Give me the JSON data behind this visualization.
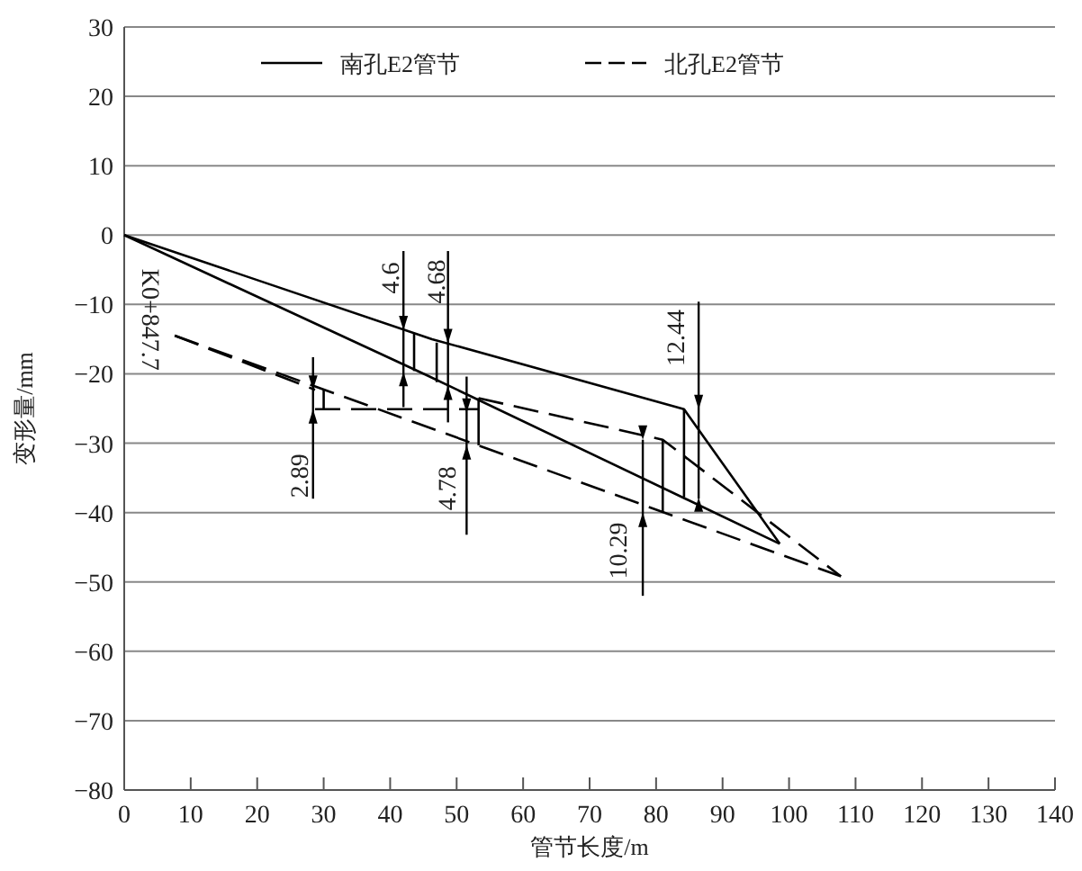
{
  "chart_data": {
    "type": "line",
    "xlabel": "管节长度/m",
    "ylabel": "变形量/mm",
    "xlim": [
      0,
      140
    ],
    "xticks": [
      0,
      10,
      20,
      30,
      40,
      50,
      60,
      70,
      80,
      90,
      100,
      110,
      120,
      130,
      140
    ],
    "ylim": [
      -80,
      30
    ],
    "yticks": [
      -80,
      -70,
      -60,
      -50,
      -40,
      -30,
      -20,
      -10,
      0,
      10,
      20,
      30
    ],
    "grid": "y",
    "legend": "top",
    "series": [
      {
        "name": "南孔E2管节",
        "color": "#000000",
        "line_style": "solid",
        "x": [
          0,
          46.3,
          84.2,
          98.6
        ],
        "values": [
          0,
          -15,
          -25.1,
          -44.5
        ]
      },
      {
        "color": "#000000",
        "line_style": "solid",
        "x": [
          0,
          45.5,
          98.6
        ],
        "values": [
          0,
          -20.2,
          -44.5
        ]
      },
      {
        "color": "#000000",
        "line_style": "solid",
        "x": [
          43.6,
          43.6
        ],
        "values": [
          -14.1,
          -19.6
        ]
      },
      {
        "color": "#000000",
        "line_style": "solid",
        "x": [
          47,
          47
        ],
        "values": [
          -15.5,
          -21.2
        ]
      },
      {
        "color": "#000000",
        "line_style": "solid",
        "x": [
          84.2,
          84.2
        ],
        "values": [
          -25.1,
          -37.8
        ]
      },
      {
        "name": "北孔E2管节",
        "color": "#000000",
        "line_style": "dashed",
        "x": [
          7.6,
          28.7
        ],
        "values": [
          -14.5,
          -22.3
        ]
      },
      {
        "color": "#000000",
        "line_style": "dashed",
        "x": [
          28.7,
          53.3
        ],
        "values": [
          -25.1,
          -25.1
        ]
      },
      {
        "color": "#000000",
        "line_style": "dashed",
        "x": [
          53.3,
          81,
          107.8
        ],
        "values": [
          -23.5,
          -29.5,
          -49.2
        ]
      },
      {
        "color": "#000000",
        "line_style": "dashed",
        "x": [
          7.6,
          107.8
        ],
        "values": [
          -14.5,
          -49.2
        ]
      },
      {
        "color": "#000000",
        "line_style": "solid",
        "x": [
          30,
          30
        ],
        "values": [
          -22.3,
          -25.1
        ]
      },
      {
        "color": "#000000",
        "line_style": "solid",
        "x": [
          53.3,
          53.3
        ],
        "values": [
          -23.5,
          -30.3
        ]
      },
      {
        "color": "#000000",
        "line_style": "solid",
        "x": [
          81,
          81
        ],
        "values": [
          -29.5,
          -40
        ]
      }
    ],
    "annotations": [
      {
        "text": "4.6",
        "x": 42,
        "y": -13.7
      },
      {
        "text": "4.68",
        "x": 48.7,
        "y": -15.6
      },
      {
        "text": "2.89",
        "x": 28.4,
        "y": -22.3
      },
      {
        "text": "4.78",
        "x": 51.5,
        "y": -25.6
      },
      {
        "text": "10.29",
        "x": 78,
        "y": -29.5
      },
      {
        "text": "12.44",
        "x": 84.2,
        "y": -25.1
      },
      {
        "text": "K0+847.7",
        "x": 7.6,
        "y": -14.5
      }
    ]
  }
}
